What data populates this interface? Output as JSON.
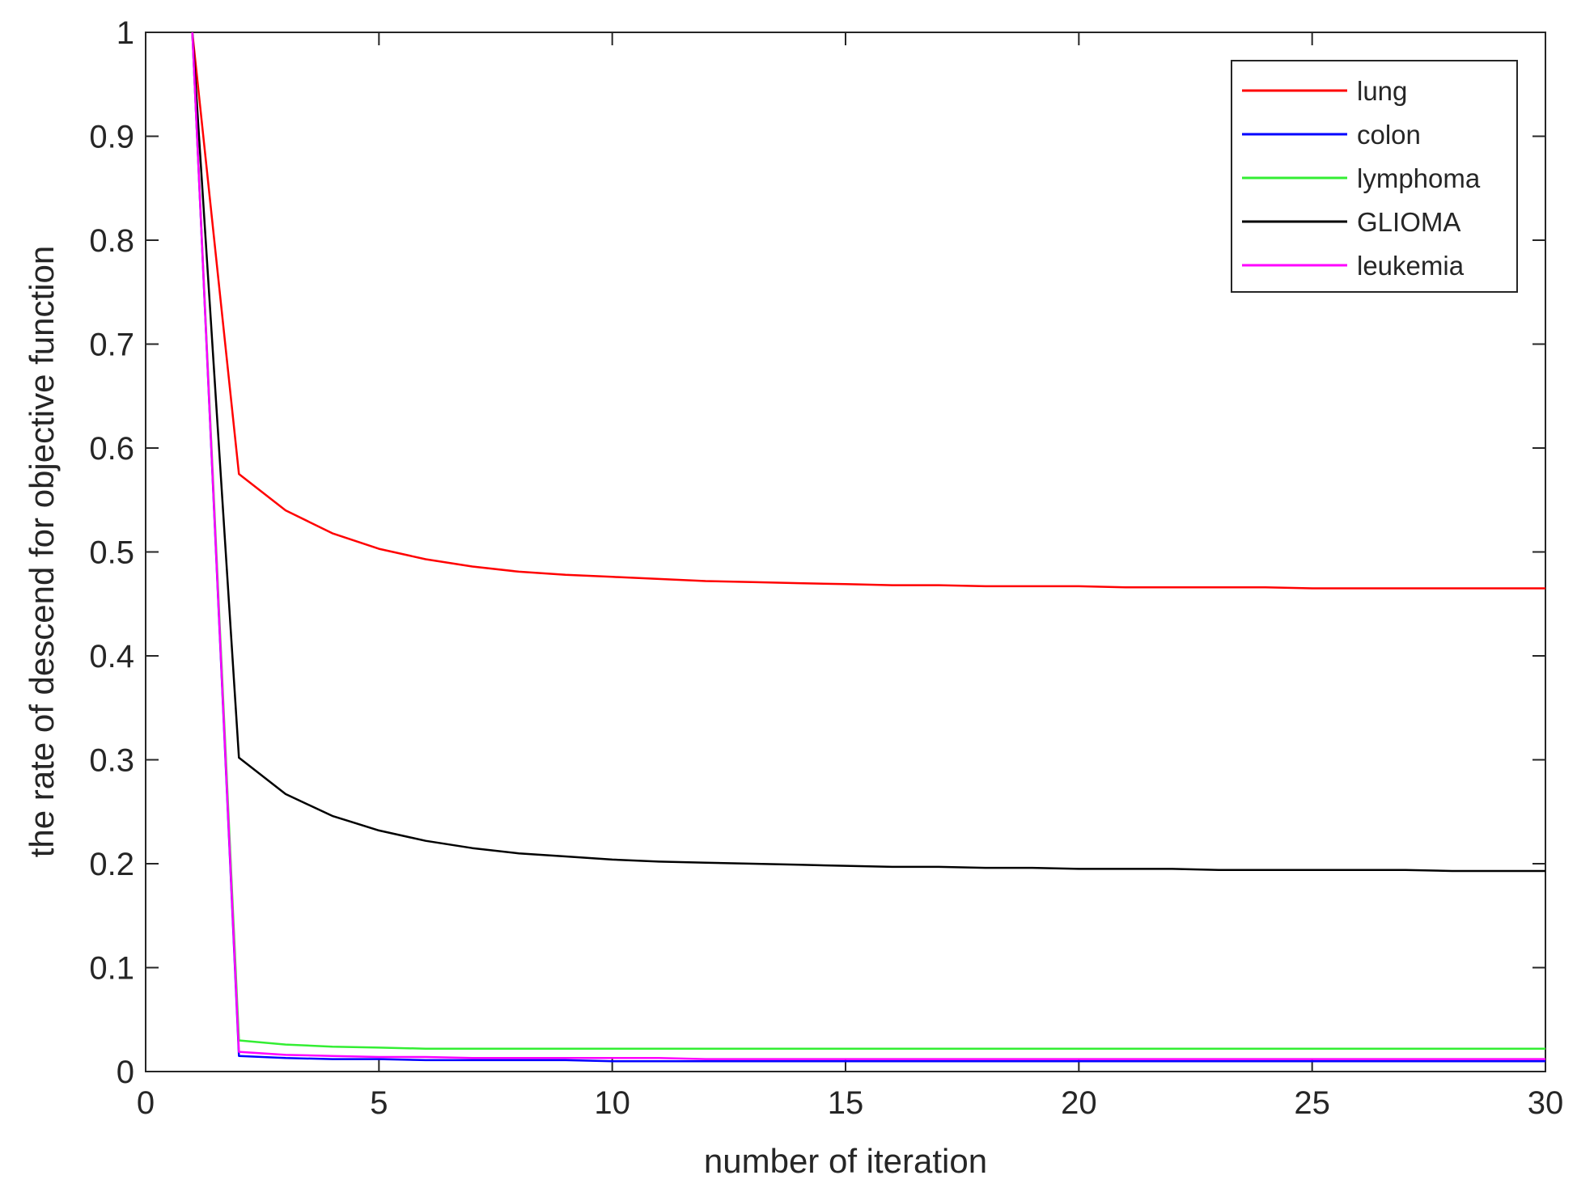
{
  "chart_data": {
    "type": "line",
    "title": "",
    "xlabel": "number of iteration",
    "ylabel": "the rate of descend for objective function",
    "xlim": [
      0,
      30
    ],
    "ylim": [
      0,
      1
    ],
    "x_ticks": [
      0,
      5,
      10,
      15,
      20,
      25,
      30
    ],
    "x_tick_labels": [
      "0",
      "5",
      "10",
      "15",
      "20",
      "25",
      "30"
    ],
    "y_ticks": [
      0,
      0.1,
      0.2,
      0.3,
      0.4,
      0.5,
      0.6,
      0.7,
      0.8,
      0.9,
      1
    ],
    "y_tick_labels": [
      "0",
      "0.1",
      "0.2",
      "0.3",
      "0.4",
      "0.5",
      "0.6",
      "0.7",
      "0.8",
      "0.9",
      "1"
    ],
    "grid": false,
    "legend_position": "top-right",
    "x": [
      1,
      2,
      3,
      4,
      5,
      6,
      7,
      8,
      9,
      10,
      11,
      12,
      13,
      14,
      15,
      16,
      17,
      18,
      19,
      20,
      21,
      22,
      23,
      24,
      25,
      26,
      27,
      28,
      29,
      30
    ],
    "series": [
      {
        "name": "lung",
        "color": "#ff0000",
        "values": [
          1.0,
          0.575,
          0.54,
          0.518,
          0.503,
          0.493,
          0.486,
          0.481,
          0.478,
          0.476,
          0.474,
          0.472,
          0.471,
          0.47,
          0.469,
          0.468,
          0.468,
          0.467,
          0.467,
          0.467,
          0.466,
          0.466,
          0.466,
          0.466,
          0.465,
          0.465,
          0.465,
          0.465,
          0.465,
          0.465
        ]
      },
      {
        "name": "colon",
        "color": "#0000ff",
        "values": [
          1.0,
          0.015,
          0.013,
          0.012,
          0.012,
          0.011,
          0.011,
          0.011,
          0.011,
          0.01,
          0.01,
          0.01,
          0.01,
          0.01,
          0.01,
          0.01,
          0.01,
          0.01,
          0.01,
          0.01,
          0.01,
          0.01,
          0.01,
          0.01,
          0.01,
          0.01,
          0.01,
          0.01,
          0.01,
          0.01
        ]
      },
      {
        "name": "lymphoma",
        "color": "#33ee33",
        "values": [
          1.0,
          0.03,
          0.026,
          0.024,
          0.023,
          0.022,
          0.022,
          0.022,
          0.022,
          0.022,
          0.022,
          0.022,
          0.022,
          0.022,
          0.022,
          0.022,
          0.022,
          0.022,
          0.022,
          0.022,
          0.022,
          0.022,
          0.022,
          0.022,
          0.022,
          0.022,
          0.022,
          0.022,
          0.022,
          0.022
        ]
      },
      {
        "name": "GLIOMA",
        "color": "#000000",
        "values": [
          1.0,
          0.302,
          0.267,
          0.246,
          0.232,
          0.222,
          0.215,
          0.21,
          0.207,
          0.204,
          0.202,
          0.201,
          0.2,
          0.199,
          0.198,
          0.197,
          0.197,
          0.196,
          0.196,
          0.195,
          0.195,
          0.195,
          0.194,
          0.194,
          0.194,
          0.194,
          0.194,
          0.193,
          0.193,
          0.193
        ]
      },
      {
        "name": "leukemia",
        "color": "#ff00ff",
        "values": [
          1.0,
          0.019,
          0.016,
          0.015,
          0.014,
          0.014,
          0.013,
          0.013,
          0.013,
          0.013,
          0.013,
          0.012,
          0.012,
          0.012,
          0.012,
          0.012,
          0.012,
          0.012,
          0.012,
          0.012,
          0.012,
          0.012,
          0.012,
          0.012,
          0.012,
          0.012,
          0.012,
          0.012,
          0.012,
          0.012
        ]
      }
    ]
  }
}
